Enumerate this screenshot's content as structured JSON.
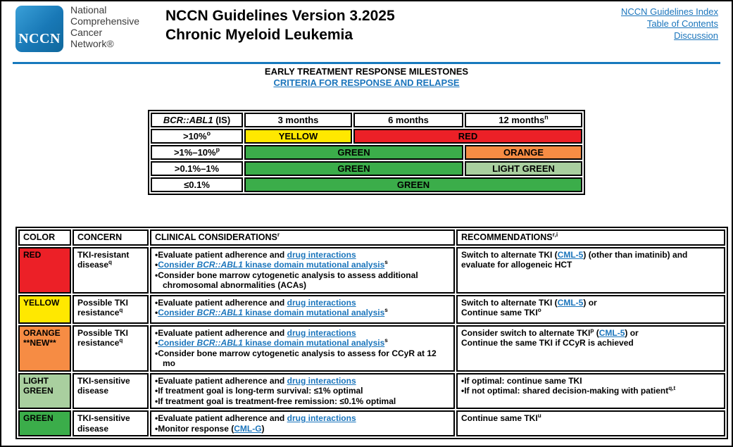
{
  "header": {
    "logo": {
      "acronym": "NCCN",
      "org_lines": [
        "National",
        "Comprehensive",
        "Cancer",
        "Network®"
      ]
    },
    "title_line1": "NCCN Guidelines Version 3.2025",
    "title_line2": "Chronic Myeloid Leukemia",
    "links": [
      "NCCN Guidelines Index",
      "Table of Contents",
      "Discussion"
    ]
  },
  "section": {
    "heading": "EARLY TREATMENT RESPONSE MILESTONES",
    "subheading_link": "CRITERIA FOR RESPONSE AND RELAPSE"
  },
  "colors": {
    "red": "#EC2027",
    "yellow": "#FFE800",
    "green": "#3BAD4A",
    "orange": "#F68C44",
    "light_green": "#A9CF9F",
    "link_blue": "#1B75BC",
    "rule_blue": "#1779BD",
    "logo_blue": "#1878B6"
  },
  "milestone_table": {
    "header": [
      [
        {
          "t": "BCR::ABL1",
          "i": true
        },
        {
          "t": " (IS)"
        }
      ],
      [
        {
          "t": "3 months"
        }
      ],
      [
        {
          "t": "6 months"
        }
      ],
      [
        {
          "t": "12 months"
        },
        {
          "t": "n",
          "sup": true
        }
      ]
    ],
    "rows": [
      {
        "label": [
          {
            "t": ">10%"
          },
          {
            "t": "o",
            "sup": true
          }
        ],
        "cells": [
          {
            "text": "YELLOW",
            "color": "yellow",
            "span": 1
          },
          {
            "text": "RED",
            "color": "red",
            "span": 2
          }
        ]
      },
      {
        "label": [
          {
            "t": ">1%–10%"
          },
          {
            "t": "p",
            "sup": true
          }
        ],
        "cells": [
          {
            "text": "GREEN",
            "color": "green",
            "span": 2
          },
          {
            "text": "ORANGE",
            "color": "orange",
            "span": 1
          }
        ]
      },
      {
        "label": [
          {
            "t": ">0.1%–1%"
          }
        ],
        "cells": [
          {
            "text": "GREEN",
            "color": "green",
            "span": 2
          },
          {
            "text": "LIGHT GREEN",
            "color": "light_green",
            "span": 1
          }
        ]
      },
      {
        "label": [
          {
            "t": "≤0.1%"
          }
        ],
        "cells": [
          {
            "text": "GREEN",
            "color": "green",
            "span": 3
          }
        ]
      }
    ]
  },
  "response_table": {
    "headers": [
      [
        {
          "t": "COLOR"
        }
      ],
      [
        {
          "t": "CONCERN"
        }
      ],
      [
        {
          "t": "CLINICAL CONSIDERATIONS"
        },
        {
          "t": "r",
          "sup": true
        }
      ],
      [
        {
          "t": "RECOMMENDATIONS"
        },
        {
          "t": "r,i",
          "sup": true
        }
      ]
    ],
    "rows": [
      {
        "key": "red",
        "color": "red",
        "color_lines": [
          "RED"
        ],
        "concern": [
          {
            "t": "TKI-resistant disease"
          },
          {
            "t": "q",
            "sup": true
          }
        ],
        "considerations": [
          [
            {
              "t": "Evaluate patient adherence and "
            },
            {
              "t": "drug interactions",
              "link": true,
              "name": "drug-interactions-link"
            }
          ],
          [
            {
              "t": "Consider ",
              "link": true,
              "name": "mutational-analysis-link"
            },
            {
              "t": "BCR::ABL1",
              "link": true,
              "i": true,
              "name": "mutational-analysis-link"
            },
            {
              "t": " kinase domain mutational analysis",
              "link": true,
              "name": "mutational-analysis-link"
            },
            {
              "t": "s",
              "sup": true
            }
          ],
          [
            {
              "t": "Consider bone marrow cytogenetic analysis to assess additional chromosomal abnormalities (ACAs)"
            }
          ]
        ],
        "recommendations": {
          "bulleted": false,
          "lines": [
            [
              {
                "t": "Switch to alternate TKI ("
              },
              {
                "t": "CML-5",
                "link": true,
                "name": "cml-5-link"
              },
              {
                "t": ") (other than imatinib) and evaluate for allogeneic HCT"
              }
            ]
          ]
        }
      },
      {
        "key": "yellow",
        "color": "yellow",
        "color_lines": [
          "YELLOW"
        ],
        "concern": [
          {
            "t": "Possible TKI resistance"
          },
          {
            "t": "q",
            "sup": true
          }
        ],
        "considerations": [
          [
            {
              "t": "Evaluate patient adherence and "
            },
            {
              "t": "drug interactions",
              "link": true,
              "name": "drug-interactions-link"
            }
          ],
          [
            {
              "t": "Consider ",
              "link": true,
              "name": "mutational-analysis-link"
            },
            {
              "t": "BCR::ABL1",
              "link": true,
              "i": true,
              "name": "mutational-analysis-link"
            },
            {
              "t": " kinase domain mutational analysis",
              "link": true,
              "name": "mutational-analysis-link"
            },
            {
              "t": "s",
              "sup": true
            }
          ]
        ],
        "recommendations": {
          "bulleted": false,
          "lines": [
            [
              {
                "t": "Switch to alternate TKI ("
              },
              {
                "t": "CML-5",
                "link": true,
                "name": "cml-5-link"
              },
              {
                "t": ") or"
              }
            ],
            [
              {
                "t": "Continue same TKI"
              },
              {
                "t": "o",
                "sup": true
              }
            ]
          ]
        }
      },
      {
        "key": "orange",
        "color": "orange",
        "color_lines": [
          "ORANGE",
          "**NEW**"
        ],
        "concern": [
          {
            "t": "Possible TKI resistance"
          },
          {
            "t": "q",
            "sup": true
          }
        ],
        "considerations": [
          [
            {
              "t": "Evaluate patient adherence and "
            },
            {
              "t": "drug interactions",
              "link": true,
              "name": "drug-interactions-link"
            }
          ],
          [
            {
              "t": "Consider ",
              "link": true,
              "name": "mutational-analysis-link"
            },
            {
              "t": "BCR::ABL1",
              "link": true,
              "i": true,
              "name": "mutational-analysis-link"
            },
            {
              "t": " kinase domain mutational analysis",
              "link": true,
              "name": "mutational-analysis-link"
            },
            {
              "t": "s",
              "sup": true
            }
          ],
          [
            {
              "t": "Consider bone marrow cytogenetic analysis to assess for CCyR at 12 mo"
            }
          ]
        ],
        "recommendations": {
          "bulleted": false,
          "lines": [
            [
              {
                "t": "Consider switch to alternate TKI"
              },
              {
                "t": "p",
                "sup": true
              },
              {
                "t": " ("
              },
              {
                "t": "CML-5",
                "link": true,
                "name": "cml-5-link"
              },
              {
                "t": ") or"
              }
            ],
            [
              {
                "t": "Continue the same TKI if CCyR is achieved"
              }
            ]
          ]
        }
      },
      {
        "key": "light-green",
        "color": "light_green",
        "color_lines": [
          "LIGHT",
          "GREEN"
        ],
        "concern": [
          {
            "t": "TKI-sensitive disease"
          }
        ],
        "considerations": [
          [
            {
              "t": "Evaluate patient adherence and "
            },
            {
              "t": "drug interactions",
              "link": true,
              "name": "drug-interactions-link"
            }
          ],
          [
            {
              "t": "If treatment goal is long-term survival: ≤1% optimal"
            }
          ],
          [
            {
              "t": "If treatment goal is treatment-free remission: ≤0.1% optimal"
            }
          ]
        ],
        "recommendations": {
          "bulleted": true,
          "lines": [
            [
              {
                "t": "If optimal: continue same TKI"
              }
            ],
            [
              {
                "t": "If not optimal: shared decision-making with patient"
              },
              {
                "t": "q,t",
                "sup": true
              }
            ]
          ]
        }
      },
      {
        "key": "green",
        "color": "green",
        "color_lines": [
          "GREEN"
        ],
        "concern": [
          {
            "t": "TKI-sensitive disease"
          }
        ],
        "considerations": [
          [
            {
              "t": "Evaluate patient adherence and "
            },
            {
              "t": "drug interactions",
              "link": true,
              "name": "drug-interactions-link"
            }
          ],
          [
            {
              "t": "Monitor response ("
            },
            {
              "t": "CML-G",
              "link": true,
              "name": "cml-g-link"
            },
            {
              "t": ")"
            }
          ]
        ],
        "recommendations": {
          "bulleted": false,
          "lines": [
            [
              {
                "t": "Continue same TKI"
              },
              {
                "t": "u",
                "sup": true
              }
            ]
          ]
        }
      }
    ]
  }
}
